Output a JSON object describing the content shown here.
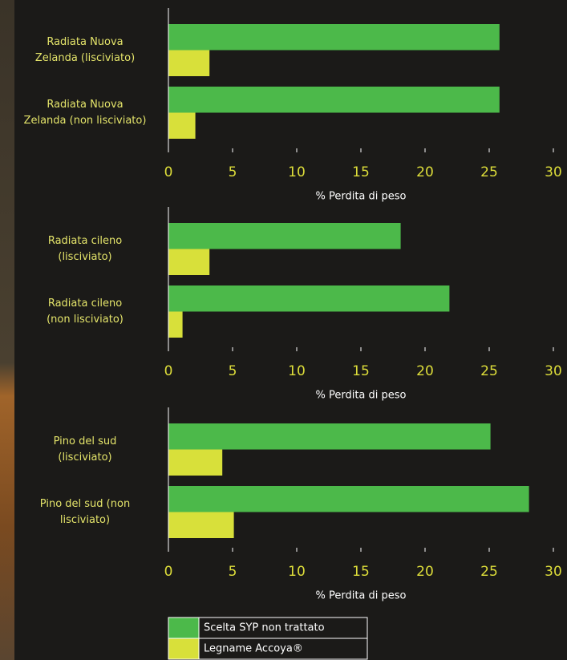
{
  "legend": [
    {
      "name": "Scelta SYP non trattato",
      "color": "#4cb94a"
    },
    {
      "name": "Legname Accoya®",
      "color": "#d8e03a"
    }
  ],
  "chart_data": [
    {
      "type": "bar",
      "orientation": "horizontal",
      "categories": [
        "Radiata Nuova\nZelanda (lisciviato)",
        "Radiata Nuova\nZelanda (non lisciviato)"
      ],
      "series": [
        {
          "values": [
            25.8,
            25.8
          ]
        },
        {
          "values": [
            3.2,
            2.1
          ]
        }
      ],
      "xlabel": "% Perdita di peso",
      "xlim": [
        0,
        30
      ],
      "xticks": [
        0,
        5,
        10,
        15,
        20,
        25,
        30
      ]
    },
    {
      "type": "bar",
      "orientation": "horizontal",
      "categories": [
        "Radiata cileno\n(lisciviato)",
        "Radiata cileno\n(non lisciviato)"
      ],
      "series": [
        {
          "values": [
            18.1,
            21.9
          ]
        },
        {
          "values": [
            3.2,
            1.1
          ]
        }
      ],
      "xlabel": "% Perdita di peso",
      "xlim": [
        0,
        30
      ],
      "xticks": [
        0,
        5,
        10,
        15,
        20,
        25,
        30
      ]
    },
    {
      "type": "bar",
      "orientation": "horizontal",
      "categories": [
        "Pino del sud\n(lisciviato)",
        "Pino del sud (non\nlisciviato)"
      ],
      "series": [
        {
          "values": [
            25.1,
            28.1
          ]
        },
        {
          "values": [
            4.2,
            5.1
          ]
        }
      ],
      "xlabel": "% Perdita di peso",
      "xlim": [
        0,
        30
      ],
      "xticks": [
        0,
        5,
        10,
        15,
        20,
        25,
        30
      ]
    }
  ]
}
